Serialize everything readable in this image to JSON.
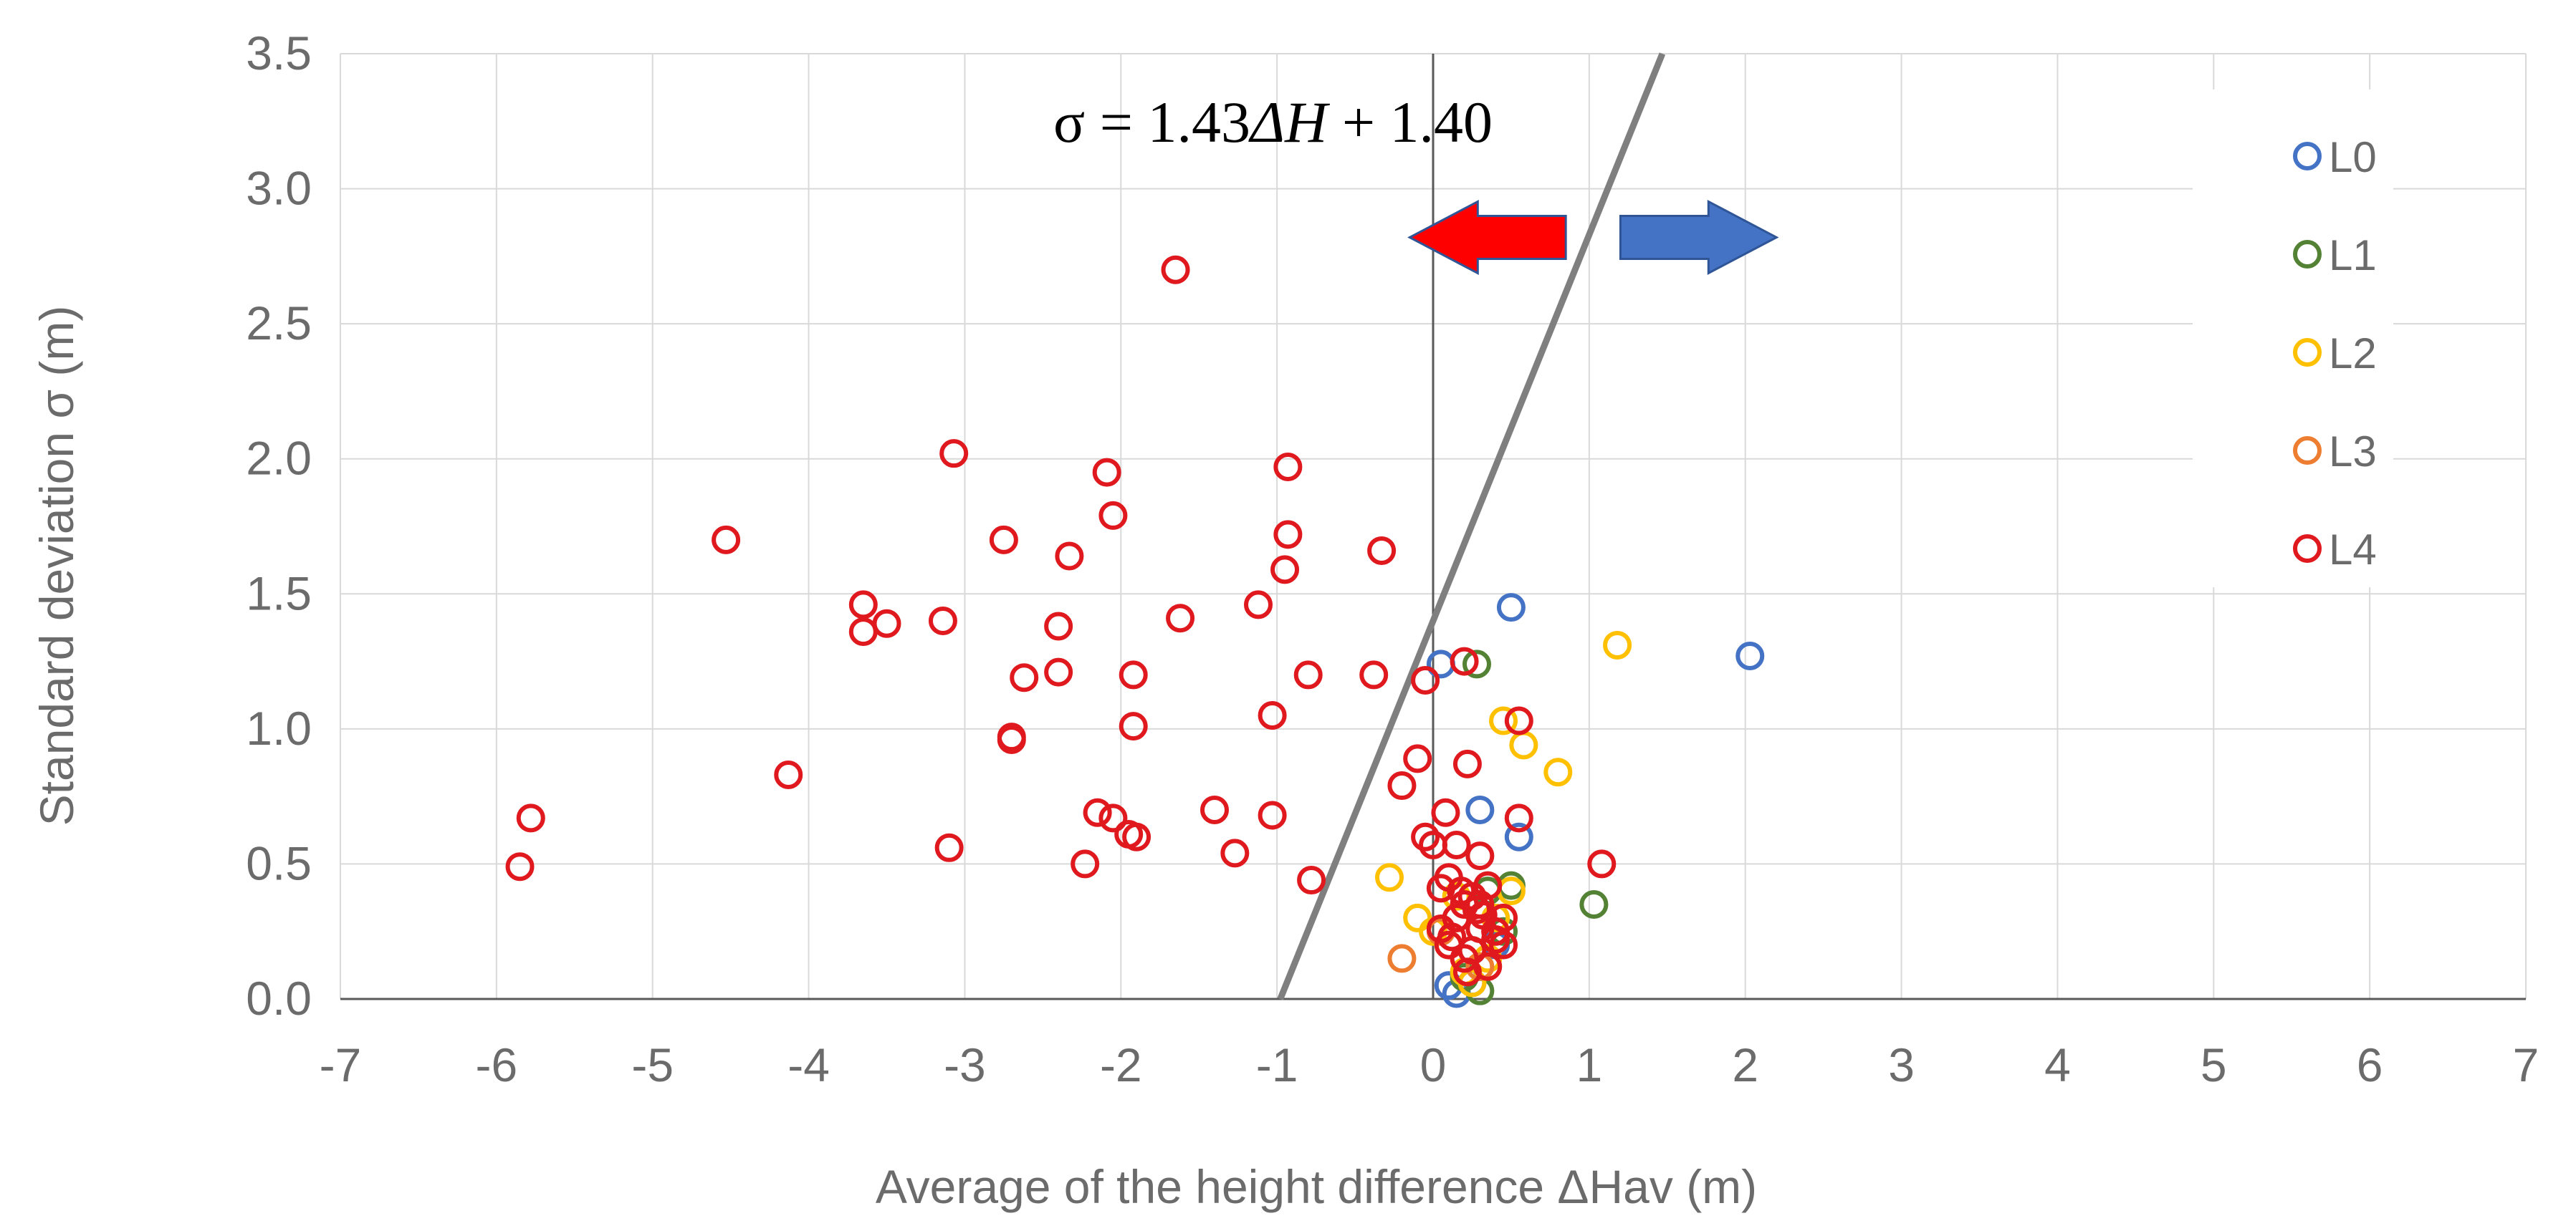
{
  "chart_data": {
    "type": "scatter",
    "xlabel": "Average  of the height difference ΔHav (m)",
    "ylabel": "Standard deviation σ (m)",
    "xlim": [
      -7,
      7
    ],
    "ylim": [
      0,
      3.5
    ],
    "x_ticks": [
      "-7",
      "-6",
      "-5",
      "-4",
      "-3",
      "-2",
      "-1",
      "0",
      "1",
      "2",
      "3",
      "4",
      "5",
      "6",
      "7"
    ],
    "y_ticks": [
      "0.0",
      "0.5",
      "1.0",
      "1.5",
      "2.0",
      "2.5",
      "3.0",
      "3.5"
    ],
    "grid": true,
    "legend_position": "top-right",
    "equation": {
      "prefix": "σ = 1.43",
      "var": "ΔH",
      "suffix": " + 1.40",
      "slope": 1.43,
      "intercept": 1.4
    },
    "arrows": [
      {
        "direction": "left",
        "color": "#ff0000",
        "from_x": 0.85,
        "to_x": -0.15,
        "y": 2.82
      },
      {
        "direction": "right",
        "color": "#4472c4",
        "from_x": 1.2,
        "to_x": 2.2,
        "y": 2.82
      }
    ],
    "series": [
      {
        "name": "L0",
        "color": "#4472c4",
        "x": [
          0.5,
          2.03,
          0.05,
          0.3,
          0.55,
          0.1,
          0.15,
          0.4,
          0.25
        ],
        "y": [
          1.45,
          1.27,
          1.24,
          0.7,
          0.6,
          0.05,
          0.02,
          0.2,
          0.06
        ]
      },
      {
        "name": "L1",
        "color": "#548235",
        "x": [
          0.28,
          1.03,
          0.3,
          0.25,
          0.45,
          0.5,
          0.35,
          0.2
        ],
        "y": [
          1.24,
          0.35,
          0.03,
          0.18,
          0.25,
          0.42,
          0.4,
          0.08
        ]
      },
      {
        "name": "L2",
        "color": "#ffc000",
        "x": [
          1.18,
          0.45,
          0.58,
          0.8,
          -0.28,
          0.5,
          0.3,
          0.1,
          0.0,
          0.2,
          0.35,
          0.15,
          0.4,
          0.25,
          -0.1
        ],
        "y": [
          1.31,
          1.03,
          0.94,
          0.84,
          0.45,
          0.4,
          0.35,
          0.2,
          0.25,
          0.1,
          0.15,
          0.38,
          0.3,
          0.06,
          0.3
        ]
      },
      {
        "name": "L3",
        "color": "#ed7d31",
        "x": [
          -0.2,
          0.05,
          0.3,
          0.15
        ],
        "y": [
          0.15,
          0.25,
          0.12,
          0.3
        ]
      },
      {
        "name": "L4",
        "color": "#e0191f",
        "x": [
          -1.65,
          -3.07,
          -2.09,
          -0.93,
          -2.05,
          -4.53,
          -2.75,
          -0.93,
          -2.33,
          -0.33,
          -0.95,
          -3.65,
          -3.5,
          -3.65,
          -3.14,
          -2.4,
          -1.62,
          -1.12,
          -2.62,
          -2.4,
          -1.92,
          -0.8,
          -0.38,
          -0.05,
          0.2,
          -1.03,
          0.55,
          -2.7,
          -2.7,
          -1.92,
          -0.1,
          0.22,
          -4.13,
          -0.2,
          -5.78,
          -5.85,
          -2.15,
          -2.05,
          -1.95,
          -1.9,
          -1.4,
          -1.03,
          -3.1,
          -2.23,
          -1.27,
          -0.78,
          0.08,
          0.55,
          1.08,
          0.0,
          -0.05,
          0.15,
          0.1,
          0.3,
          0.05,
          0.25,
          0.2,
          0.35,
          0.45,
          0.4,
          0.15,
          0.3,
          0.1,
          0.2,
          0.25,
          0.35,
          0.28,
          0.05,
          0.45,
          0.18,
          0.22,
          0.32,
          0.12,
          0.4,
          0.3
        ],
        "y": [
          2.7,
          2.02,
          1.95,
          1.97,
          1.79,
          1.7,
          1.7,
          1.72,
          1.64,
          1.66,
          1.59,
          1.46,
          1.39,
          1.36,
          1.4,
          1.38,
          1.41,
          1.46,
          1.19,
          1.21,
          1.2,
          1.2,
          1.2,
          1.18,
          1.25,
          1.05,
          1.03,
          0.97,
          0.96,
          1.01,
          0.89,
          0.87,
          0.83,
          0.79,
          0.67,
          0.49,
          0.69,
          0.67,
          0.61,
          0.6,
          0.7,
          0.68,
          0.56,
          0.5,
          0.54,
          0.44,
          0.69,
          0.67,
          0.5,
          0.57,
          0.6,
          0.57,
          0.45,
          0.53,
          0.41,
          0.38,
          0.35,
          0.42,
          0.3,
          0.22,
          0.3,
          0.26,
          0.2,
          0.15,
          0.18,
          0.12,
          0.33,
          0.26,
          0.2,
          0.4,
          0.1,
          0.31,
          0.23,
          0.25,
          0.35
        ]
      }
    ]
  }
}
